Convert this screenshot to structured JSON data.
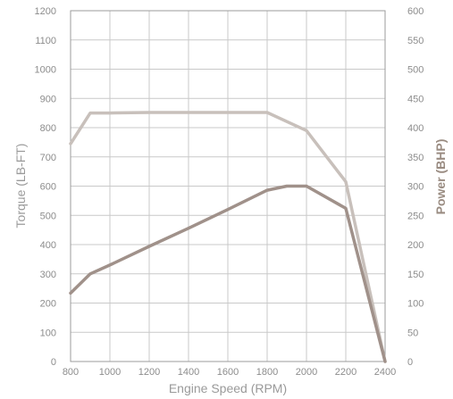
{
  "chart_data": {
    "type": "line",
    "xlabel": "Engine Speed (RPM)",
    "ylabel_left": "Torque (LB-FT)",
    "ylabel_right": "Power (BHP)",
    "x_ticks": [
      "800",
      "1000",
      "1200",
      "1400",
      "1600",
      "1800",
      "2000",
      "2200",
      "2400"
    ],
    "y_left_ticks": [
      "0",
      "100",
      "200",
      "300",
      "400",
      "500",
      "600",
      "700",
      "800",
      "900",
      "1000",
      "1100",
      "1200"
    ],
    "y_right_ticks": [
      "0",
      "50",
      "100",
      "150",
      "200",
      "250",
      "300",
      "350",
      "400",
      "450",
      "500",
      "550",
      "600"
    ],
    "xlim": [
      800,
      2400
    ],
    "ylim_left": [
      0,
      1200
    ],
    "ylim_right": [
      0,
      600
    ],
    "grid": true,
    "series": [
      {
        "axis": "left",
        "color": "#c8c0bb",
        "x": [
          800,
          900,
          1000,
          1200,
          1400,
          1600,
          1800,
          2000,
          2200,
          2400
        ],
        "y": [
          745,
          850,
          850,
          852,
          852,
          852,
          852,
          790,
          615,
          0
        ]
      },
      {
        "axis": "right",
        "color": "#a0918a",
        "x": [
          800,
          900,
          1000,
          1200,
          1400,
          1600,
          1800,
          1900,
          2000,
          2200,
          2400
        ],
        "y": [
          117,
          150,
          165,
          197,
          228,
          260,
          293,
          300,
          300,
          262,
          0
        ]
      }
    ]
  }
}
